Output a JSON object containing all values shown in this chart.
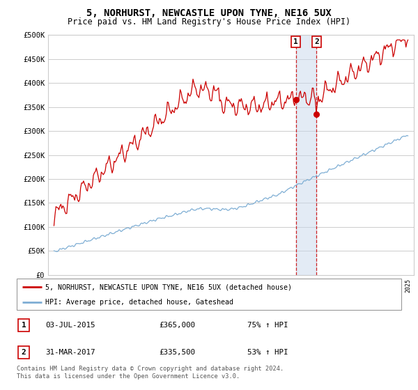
{
  "title": "5, NORHURST, NEWCASTLE UPON TYNE, NE16 5UX",
  "subtitle": "Price paid vs. HM Land Registry's House Price Index (HPI)",
  "ylabel_ticks": [
    "£0",
    "£50K",
    "£100K",
    "£150K",
    "£200K",
    "£250K",
    "£300K",
    "£350K",
    "£400K",
    "£450K",
    "£500K"
  ],
  "ytick_values": [
    0,
    50000,
    100000,
    150000,
    200000,
    250000,
    300000,
    350000,
    400000,
    450000,
    500000
  ],
  "xlim_start": 1994.5,
  "xlim_end": 2025.5,
  "ylim": [
    0,
    500000
  ],
  "sale1_date": 2015.5,
  "sale1_price": 365000,
  "sale1_label": "1",
  "sale2_date": 2017.25,
  "sale2_price": 335500,
  "sale2_label": "2",
  "line1_color": "#cc0000",
  "line2_color": "#7eaed4",
  "vline_color": "#cc0000",
  "shade_color": "#c8d8ec",
  "legend_line1": "5, NORHURST, NEWCASTLE UPON TYNE, NE16 5UX (detached house)",
  "legend_line2": "HPI: Average price, detached house, Gateshead",
  "table_row1": [
    "1",
    "03-JUL-2015",
    "£365,000",
    "75% ↑ HPI"
  ],
  "table_row2": [
    "2",
    "31-MAR-2017",
    "£335,500",
    "53% ↑ HPI"
  ],
  "footnote": "Contains HM Land Registry data © Crown copyright and database right 2024.\nThis data is licensed under the Open Government Licence v3.0.",
  "bg_color": "#ffffff",
  "grid_color": "#cccccc",
  "title_fontsize": 10,
  "subtitle_fontsize": 8.5,
  "tick_fontsize": 7.5
}
